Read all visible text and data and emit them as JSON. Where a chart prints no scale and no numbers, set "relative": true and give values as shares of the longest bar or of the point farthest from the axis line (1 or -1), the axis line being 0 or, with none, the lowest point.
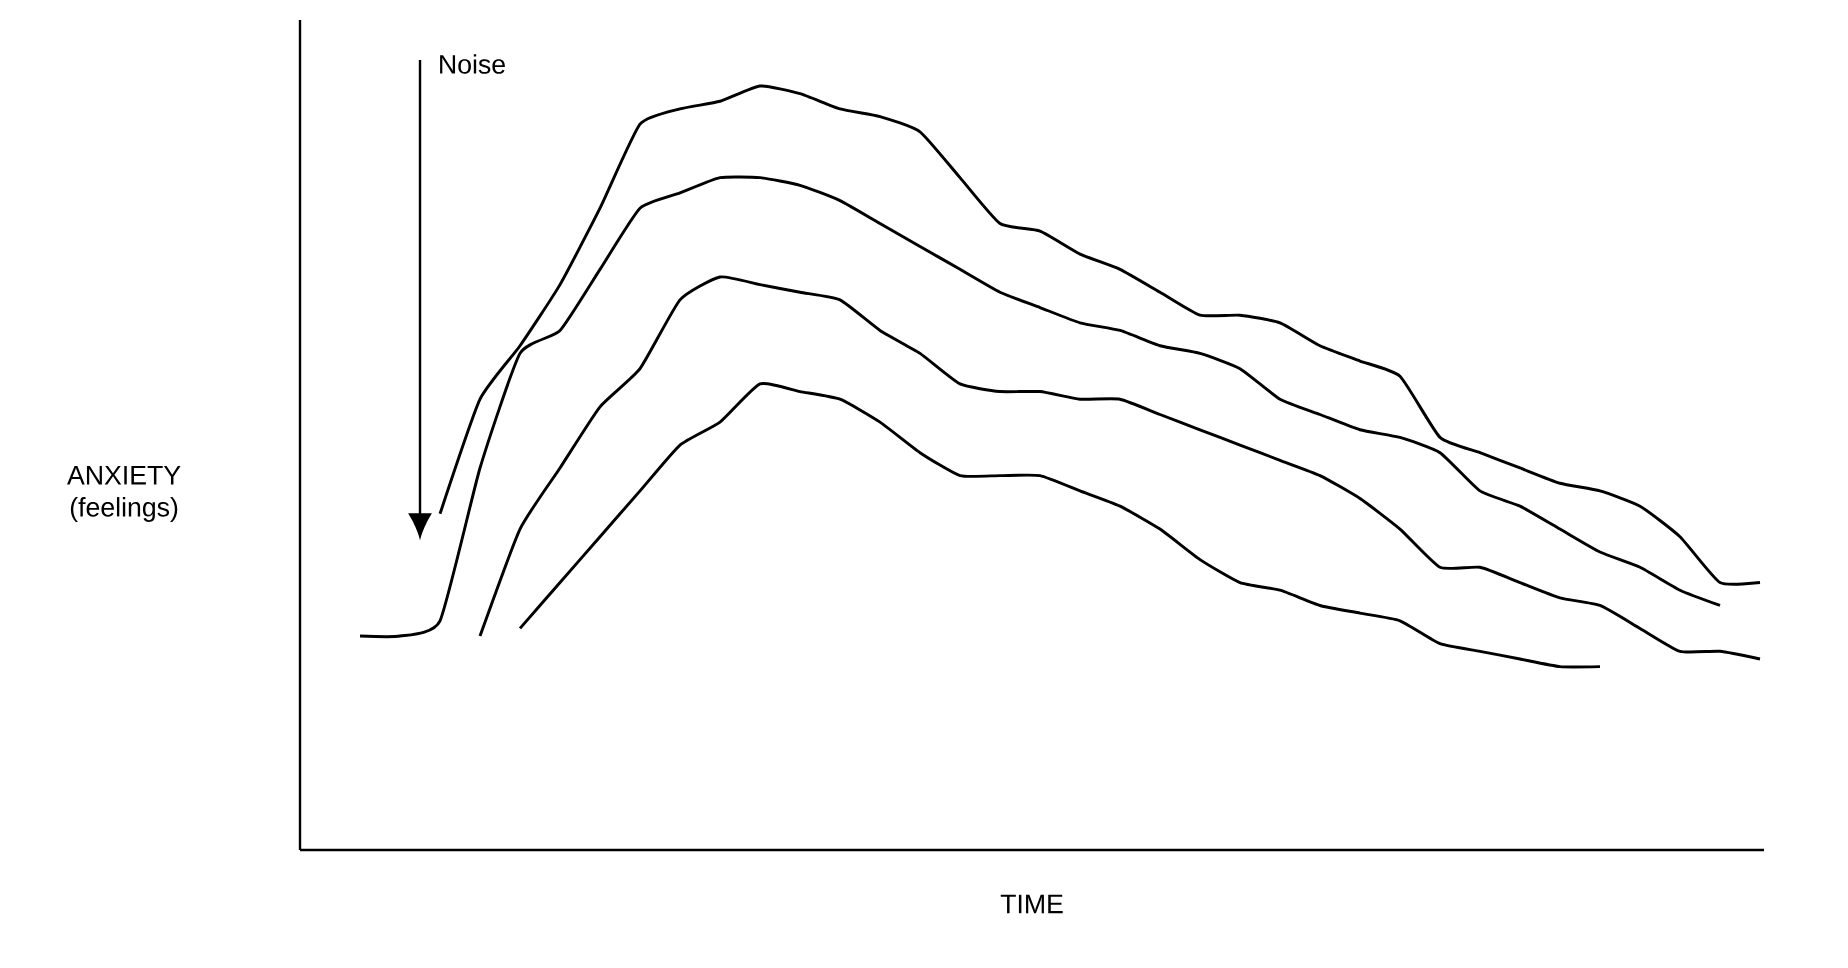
{
  "chart_data": {
    "type": "line",
    "relative": true,
    "xlabel": "TIME",
    "ylabel": "ANXIETY (feelings)",
    "annotations": [
      "Noise"
    ],
    "categories": [
      null,
      null,
      null,
      null,
      null,
      null,
      null,
      null,
      null,
      null,
      null,
      null,
      null,
      null,
      null,
      null,
      null,
      null,
      null,
      null,
      null,
      null,
      null,
      null,
      null,
      null,
      null,
      null,
      null,
      null,
      null,
      null,
      null,
      null,
      null,
      null
    ],
    "series": [
      {
        "color": "#000000",
        "values": [
          null,
          null,
          0.44,
          0.59,
          0.66,
          0.74,
          0.84,
          0.95,
          0.97,
          0.98,
          1,
          0.99,
          0.97,
          0.96,
          0.94,
          0.88,
          0.82,
          0.81,
          0.78,
          0.76,
          0.73,
          0.7,
          0.7,
          0.69,
          0.66,
          0.64,
          0.62,
          0.54,
          0.52,
          0.5,
          0.48,
          0.47,
          0.45,
          0.41,
          0.35,
          0.35
        ]
      },
      {
        "color": "#000000",
        "values": [
          0.28,
          0.28,
          0.3,
          0.5,
          0.65,
          0.68,
          0.76,
          0.84,
          0.86,
          0.88,
          0.88,
          0.87,
          0.85,
          0.82,
          0.79,
          0.76,
          0.73,
          0.71,
          0.69,
          0.68,
          0.66,
          0.65,
          0.63,
          0.59,
          0.57,
          0.55,
          0.54,
          0.52,
          0.47,
          0.45,
          0.42,
          0.39,
          0.37,
          0.34,
          0.32,
          null
        ]
      },
      {
        "color": "#000000",
        "values": [
          null,
          null,
          null,
          0.28,
          0.42,
          0.5,
          0.58,
          0.63,
          0.72,
          0.75,
          0.74,
          0.73,
          0.72,
          0.68,
          0.65,
          0.61,
          0.6,
          0.6,
          0.59,
          0.59,
          0.57,
          0.55,
          0.53,
          0.51,
          0.49,
          0.46,
          0.42,
          0.37,
          0.37,
          0.35,
          0.33,
          0.32,
          0.29,
          0.26,
          0.26,
          0.25
        ]
      },
      {
        "color": "#000000",
        "values": [
          null,
          null,
          null,
          null,
          0.29,
          0.35,
          0.41,
          0.47,
          0.53,
          0.56,
          0.61,
          0.6,
          0.59,
          0.56,
          0.52,
          0.49,
          0.49,
          0.49,
          0.47,
          0.45,
          0.42,
          0.38,
          0.35,
          0.34,
          0.32,
          0.31,
          0.3,
          0.27,
          0.26,
          0.25,
          0.24,
          0.24,
          null,
          null,
          null,
          null
        ]
      }
    ]
  }
}
